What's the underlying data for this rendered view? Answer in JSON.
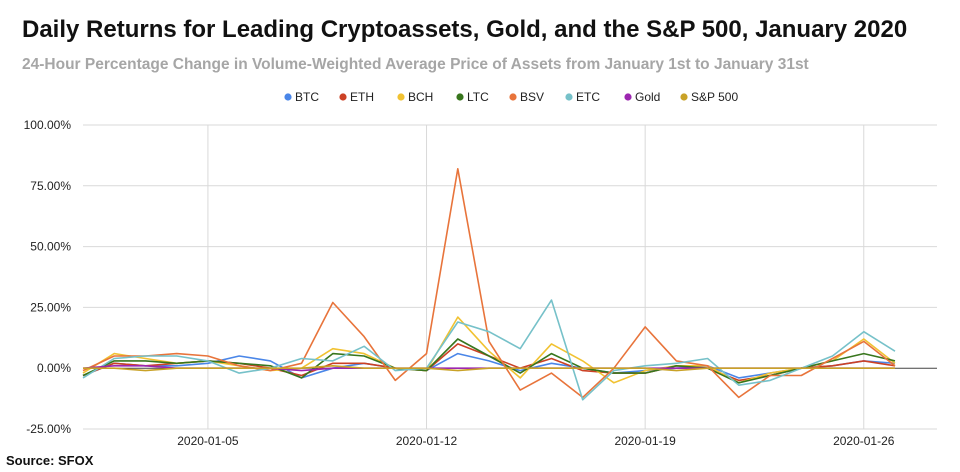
{
  "chart_data": {
    "type": "line",
    "title": "Daily Returns for Leading Cryptoassets, Gold, and the S&P 500, January 2020",
    "subtitle": "24-Hour Percentage Change in Volume-Weighted Average Price of Assets from January 1st to January 31st",
    "source": "Source: SFOX",
    "xlabel": "",
    "ylabel": "",
    "x": [
      "2020-01-01",
      "2020-01-02",
      "2020-01-03",
      "2020-01-04",
      "2020-01-05",
      "2020-01-06",
      "2020-01-07",
      "2020-01-08",
      "2020-01-09",
      "2020-01-10",
      "2020-01-11",
      "2020-01-12",
      "2020-01-13",
      "2020-01-14",
      "2020-01-15",
      "2020-01-16",
      "2020-01-17",
      "2020-01-18",
      "2020-01-19",
      "2020-01-20",
      "2020-01-21",
      "2020-01-22",
      "2020-01-23",
      "2020-01-24",
      "2020-01-25",
      "2020-01-26",
      "2020-01-27"
    ],
    "x_ticks": [
      "2020-01-05",
      "2020-01-12",
      "2020-01-19",
      "2020-01-26"
    ],
    "y_ticks": [
      -25,
      0,
      25,
      50,
      75,
      100
    ],
    "y_tick_labels": [
      "-25.00%",
      "0.00%",
      "25.00%",
      "50.00%",
      "75.00%",
      "100.00%"
    ],
    "ylim": [
      -25,
      100
    ],
    "grid": true,
    "legend_position": "top",
    "series": [
      {
        "name": "BTC",
        "color": "#4a86e8",
        "values": [
          -3,
          2,
          1,
          1,
          2,
          5,
          3,
          -4,
          0,
          2,
          0,
          -1,
          6,
          3,
          -1,
          2,
          0,
          -2,
          -1,
          0,
          1,
          -4,
          -2,
          0,
          1,
          3,
          2
        ]
      },
      {
        "name": "ETH",
        "color": "#cc4125",
        "values": [
          -3,
          2,
          1,
          2,
          3,
          2,
          0,
          -3,
          2,
          2,
          0,
          -1,
          10,
          5,
          0,
          4,
          -1,
          -2,
          -2,
          1,
          0,
          -5,
          -3,
          0,
          1,
          3,
          1
        ]
      },
      {
        "name": "BCH",
        "color": "#f1c232",
        "values": [
          -2,
          6,
          4,
          2,
          3,
          1,
          -1,
          0,
          8,
          6,
          0,
          -1,
          21,
          7,
          -4,
          10,
          3,
          -6,
          -1,
          1,
          1,
          -6,
          -2,
          0,
          3,
          12,
          2
        ]
      },
      {
        "name": "LTC",
        "color": "#38761d",
        "values": [
          -3,
          3,
          3,
          2,
          3,
          2,
          1,
          -4,
          6,
          5,
          0,
          -1,
          12,
          5,
          -2,
          6,
          0,
          -2,
          -2,
          1,
          0,
          -6,
          -3,
          0,
          3,
          6,
          3
        ]
      },
      {
        "name": "BSV",
        "color": "#e8743b",
        "values": [
          -1,
          5,
          5,
          6,
          5,
          1,
          -1,
          2,
          27,
          13,
          -5,
          6,
          82,
          11,
          -9,
          -2,
          -12,
          0,
          17,
          3,
          1,
          -12,
          -3,
          -3,
          4,
          11,
          1
        ]
      },
      {
        "name": "ETC",
        "color": "#76c1c9",
        "values": [
          -4,
          4,
          5,
          5,
          3,
          -2,
          0,
          4,
          3,
          9,
          -1,
          0,
          19,
          15,
          8,
          28,
          -13,
          -1,
          1,
          2,
          4,
          -7,
          -5,
          0,
          5,
          15,
          7
        ]
      },
      {
        "name": "Gold",
        "color": "#9c27b0",
        "values": [
          0,
          1,
          1,
          0,
          0,
          0,
          0,
          -1,
          0,
          0,
          0,
          0,
          0,
          0,
          0,
          0,
          0,
          0,
          0,
          0,
          0,
          0,
          0,
          0,
          0,
          0,
          0
        ]
      },
      {
        "name": "S&P 500",
        "color": "#c9a227",
        "values": [
          0,
          0,
          -1,
          0,
          0,
          0,
          0,
          0,
          1,
          0,
          0,
          0,
          -1,
          0,
          0,
          0,
          0,
          0,
          0,
          -1,
          0,
          0,
          0,
          0,
          0,
          0,
          0
        ]
      }
    ]
  }
}
